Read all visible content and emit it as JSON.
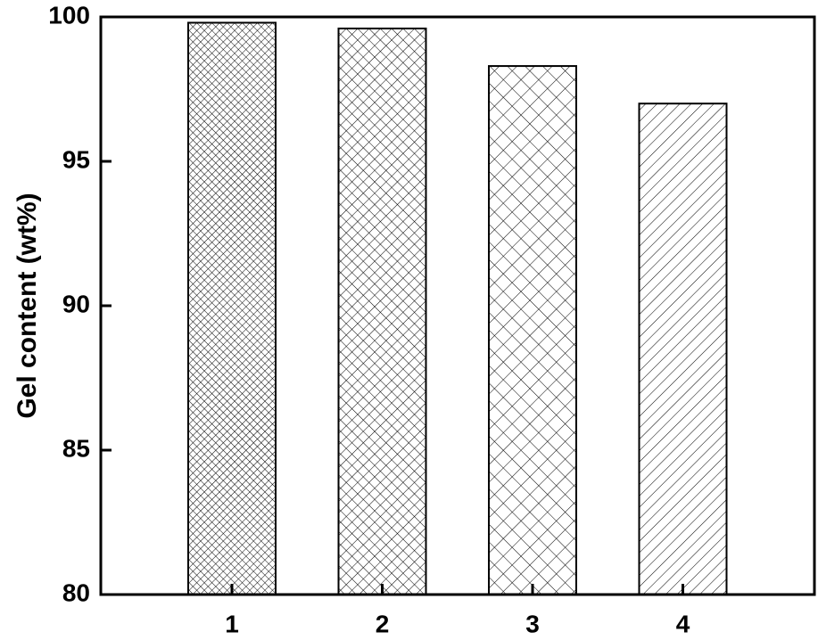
{
  "chart_data": {
    "type": "bar",
    "y_label": "Gel content (wt%)",
    "categories": [
      "1",
      "2",
      "3",
      "4"
    ],
    "values": [
      99.8,
      99.6,
      98.3,
      97.0
    ],
    "ylim": [
      80,
      100
    ],
    "yticks": [
      80,
      85,
      90,
      95,
      100
    ],
    "color": "#000000"
  }
}
